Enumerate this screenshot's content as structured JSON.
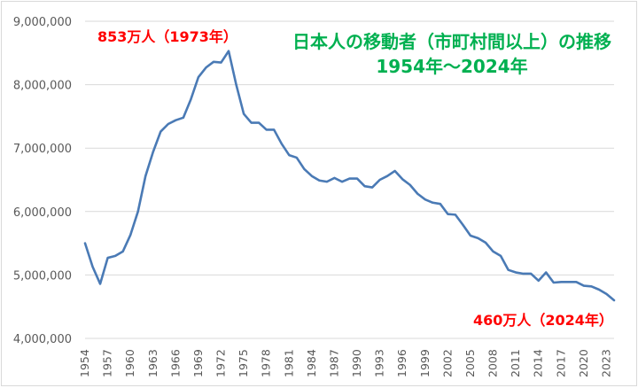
{
  "chart_data": {
    "type": "line",
    "title": "日本人の移動者（市町村間以上）の推移",
    "subtitle": "1954年～2024年",
    "xlabel": "",
    "ylabel": "",
    "ylim": [
      4000000,
      9000000
    ],
    "yticks": [
      "4,000,000",
      "5,000,000",
      "6,000,000",
      "7,000,000",
      "8,000,000",
      "9,000,000"
    ],
    "grid": true,
    "legend": "none",
    "line_color": "#4a7ab5",
    "annotation_color": "#ff0000",
    "title_color": "#00b050",
    "x_tick_labels": [
      1954,
      1957,
      1960,
      1963,
      1966,
      1969,
      1972,
      1975,
      1978,
      1981,
      1984,
      1987,
      1990,
      1993,
      1996,
      1999,
      2002,
      2005,
      2008,
      2011,
      2014,
      2017,
      2020,
      2023
    ],
    "annotations": [
      {
        "text": "853万人（1973年）",
        "x": 1973
      },
      {
        "text": "460万人（2024年）",
        "x": 2024
      }
    ],
    "x": [
      1954,
      1955,
      1956,
      1957,
      1958,
      1959,
      1960,
      1961,
      1962,
      1963,
      1964,
      1965,
      1966,
      1967,
      1968,
      1969,
      1970,
      1971,
      1972,
      1973,
      1974,
      1975,
      1976,
      1977,
      1978,
      1979,
      1980,
      1981,
      1982,
      1983,
      1984,
      1985,
      1986,
      1987,
      1988,
      1989,
      1990,
      1991,
      1992,
      1993,
      1994,
      1995,
      1996,
      1997,
      1998,
      1999,
      2000,
      2001,
      2002,
      2003,
      2004,
      2005,
      2006,
      2007,
      2008,
      2009,
      2010,
      2011,
      2012,
      2013,
      2014,
      2015,
      2016,
      2017,
      2018,
      2019,
      2020,
      2021,
      2022,
      2023,
      2024
    ],
    "values": [
      5500000,
      5130000,
      4860000,
      5270000,
      5300000,
      5370000,
      5630000,
      6000000,
      6560000,
      6940000,
      7260000,
      7380000,
      7440000,
      7480000,
      7770000,
      8120000,
      8270000,
      8360000,
      8350000,
      8530000,
      8000000,
      7540000,
      7400000,
      7400000,
      7290000,
      7290000,
      7070000,
      6890000,
      6850000,
      6670000,
      6560000,
      6490000,
      6470000,
      6530000,
      6470000,
      6520000,
      6520000,
      6400000,
      6380000,
      6500000,
      6560000,
      6640000,
      6510000,
      6420000,
      6280000,
      6190000,
      6140000,
      6120000,
      5960000,
      5950000,
      5790000,
      5620000,
      5580000,
      5510000,
      5370000,
      5300000,
      5080000,
      5040000,
      5020000,
      5020000,
      4910000,
      5040000,
      4880000,
      4890000,
      4890000,
      4890000,
      4830000,
      4820000,
      4770000,
      4700000,
      4600000
    ]
  }
}
